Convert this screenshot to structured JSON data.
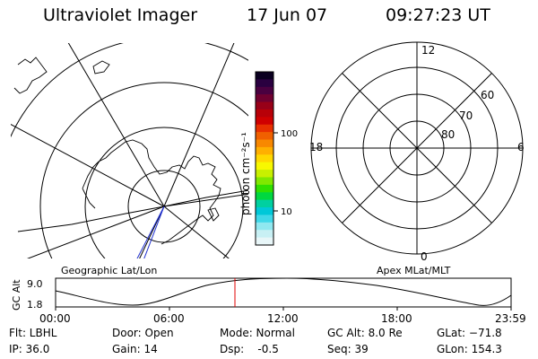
{
  "header": {
    "title": "Ultraviolet Imager",
    "date": "17 Jun 07",
    "time": "09:27:23 UT"
  },
  "colorbar": {
    "unit_label": "photon cm⁻²s⁻¹",
    "ticks": [
      "100",
      "10"
    ],
    "colors": [
      "#0a0020",
      "#2a0040",
      "#4a0040",
      "#700030",
      "#980018",
      "#b80008",
      "#d00000",
      "#e83000",
      "#f06000",
      "#f88800",
      "#ffb000",
      "#ffd800",
      "#f8f800",
      "#c8f000",
      "#80e800",
      "#30e000",
      "#00d840",
      "#00d0a0",
      "#00c8d8",
      "#40d8e8",
      "#90e8f0",
      "#c8f0f4",
      "#e8f6f8"
    ]
  },
  "apex_map": {
    "title": "Apex MLat/MLT",
    "mlt_labels": {
      "top": "12",
      "left": "18",
      "right": "6",
      "bottom": "0"
    },
    "lat_labels": [
      "60",
      "70",
      "80"
    ]
  },
  "geo_map": {
    "title": "Geographic Lat/Lon"
  },
  "timeline": {
    "ylabel": "GC Alt",
    "yticks": [
      "9.0",
      "1.8"
    ],
    "xticks": [
      "00:00",
      "06:00",
      "12:00",
      "18:00",
      "23:59"
    ],
    "current_time": "09:27:23",
    "marker_color": "#e00000"
  },
  "status": {
    "flt": "Flt: LBHL",
    "ip": "IP: 36.0",
    "door": "Door: Open",
    "gain": "Gain: 14",
    "mode": "Mode: Normal",
    "dsp": "Dsp:    -0.5",
    "gcalt": "GC Alt: 8.0 Re",
    "seq": "Seq: 39",
    "glat": "GLat: −71.8",
    "glon": "GLon: 154.3"
  }
}
